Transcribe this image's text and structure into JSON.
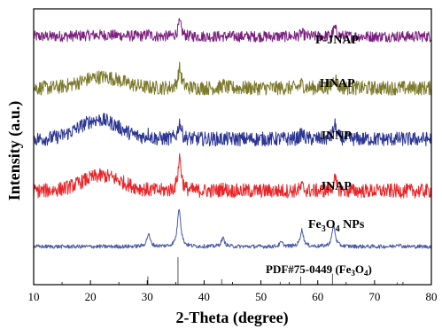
{
  "chart_data": {
    "type": "line",
    "xlabel": "2-Theta (degree)",
    "ylabel": "Intensity (a.u.)",
    "xlim": [
      10,
      80
    ],
    "x_ticks": [
      "10",
      "20",
      "30",
      "40",
      "50",
      "60",
      "70",
      "80"
    ],
    "grid": false,
    "series": [
      {
        "name": "P-JNAP",
        "color": "#7b1f7e",
        "baseline": 0.9,
        "noise": 0.02,
        "hump": {
          "center": 22,
          "height": 0.005
        },
        "peaks": [
          [
            35.7,
            0.05
          ],
          [
            63.0,
            0.03
          ],
          [
            30.2,
            0.01
          ],
          [
            57.2,
            0.012
          ]
        ]
      },
      {
        "name": "HNAP",
        "color": "#7c7a2a",
        "baseline": 0.713,
        "noise": 0.026,
        "hump": {
          "center": 22,
          "height": 0.04
        },
        "peaks": [
          [
            35.7,
            0.07
          ],
          [
            63.0,
            0.04
          ],
          [
            43.4,
            0.01
          ],
          [
            57.2,
            0.015
          ]
        ]
      },
      {
        "name": "JNNP",
        "color": "#2b3592",
        "baseline": 0.528,
        "noise": 0.026,
        "hump": {
          "center": 21.5,
          "height": 0.07
        },
        "peaks": [
          [
            35.7,
            0.06
          ],
          [
            63.0,
            0.05
          ],
          [
            57.2,
            0.02
          ],
          [
            30.2,
            0.015
          ]
        ]
      },
      {
        "name": "JNAP",
        "color": "#e8262a",
        "baseline": 0.34,
        "noise": 0.026,
        "hump": {
          "center": 22,
          "height": 0.055
        },
        "peaks": [
          [
            35.7,
            0.12
          ],
          [
            63.0,
            0.04
          ],
          [
            57.2,
            0.015
          ],
          [
            43.4,
            0.01
          ]
        ]
      },
      {
        "name": "Fe3O4 NPs",
        "color": "#4a5aa8",
        "baseline": 0.138,
        "noise": 0.007,
        "hump": {
          "center": 22,
          "height": 0.0
        },
        "peaks": [
          [
            30.2,
            0.045
          ],
          [
            35.6,
            0.14
          ],
          [
            43.3,
            0.03
          ],
          [
            53.6,
            0.015
          ],
          [
            57.2,
            0.06
          ],
          [
            62.8,
            0.075
          ],
          [
            74.1,
            0.01
          ]
        ]
      }
    ],
    "reference": {
      "name": "PDF#75-0449 (Fe3O4)",
      "color": "#555555",
      "lines": [
        [
          30.1,
          0.3
        ],
        [
          35.4,
          1.0
        ],
        [
          43.1,
          0.2
        ],
        [
          53.4,
          0.1
        ],
        [
          57.0,
          0.3
        ],
        [
          62.6,
          0.4
        ],
        [
          74.0,
          0.08
        ]
      ]
    }
  }
}
